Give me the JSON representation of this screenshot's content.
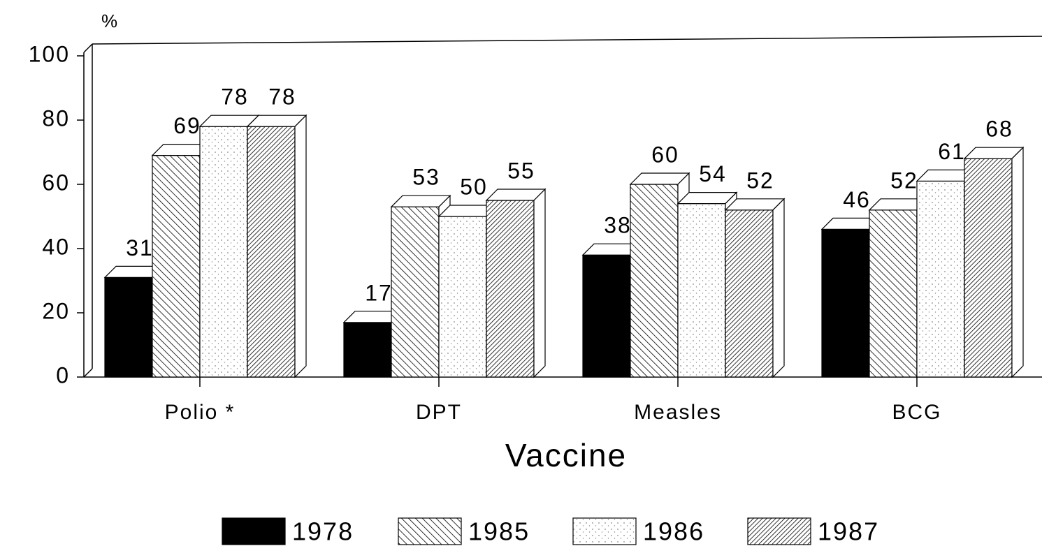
{
  "chart_data": {
    "type": "bar3d",
    "y_axis_label": "%",
    "x_axis_label": "Vaccine",
    "categories": [
      "Polio *",
      "DPT",
      "Measles",
      "BCG"
    ],
    "series": [
      {
        "name": "1978",
        "color": "#000000",
        "values": [
          31,
          17,
          38,
          46
        ]
      },
      {
        "name": "1985",
        "color": "#000000",
        "values": [
          69,
          53,
          60,
          52
        ]
      },
      {
        "name": "1986",
        "color": "#8a8a8a",
        "values": [
          78,
          50,
          54,
          61
        ]
      },
      {
        "name": "1987",
        "color": "#000000",
        "values": [
          78,
          55,
          52,
          68
        ]
      }
    ],
    "ylim": [
      0,
      100
    ],
    "yticks": [
      0,
      20,
      40,
      60,
      80,
      100
    ]
  }
}
